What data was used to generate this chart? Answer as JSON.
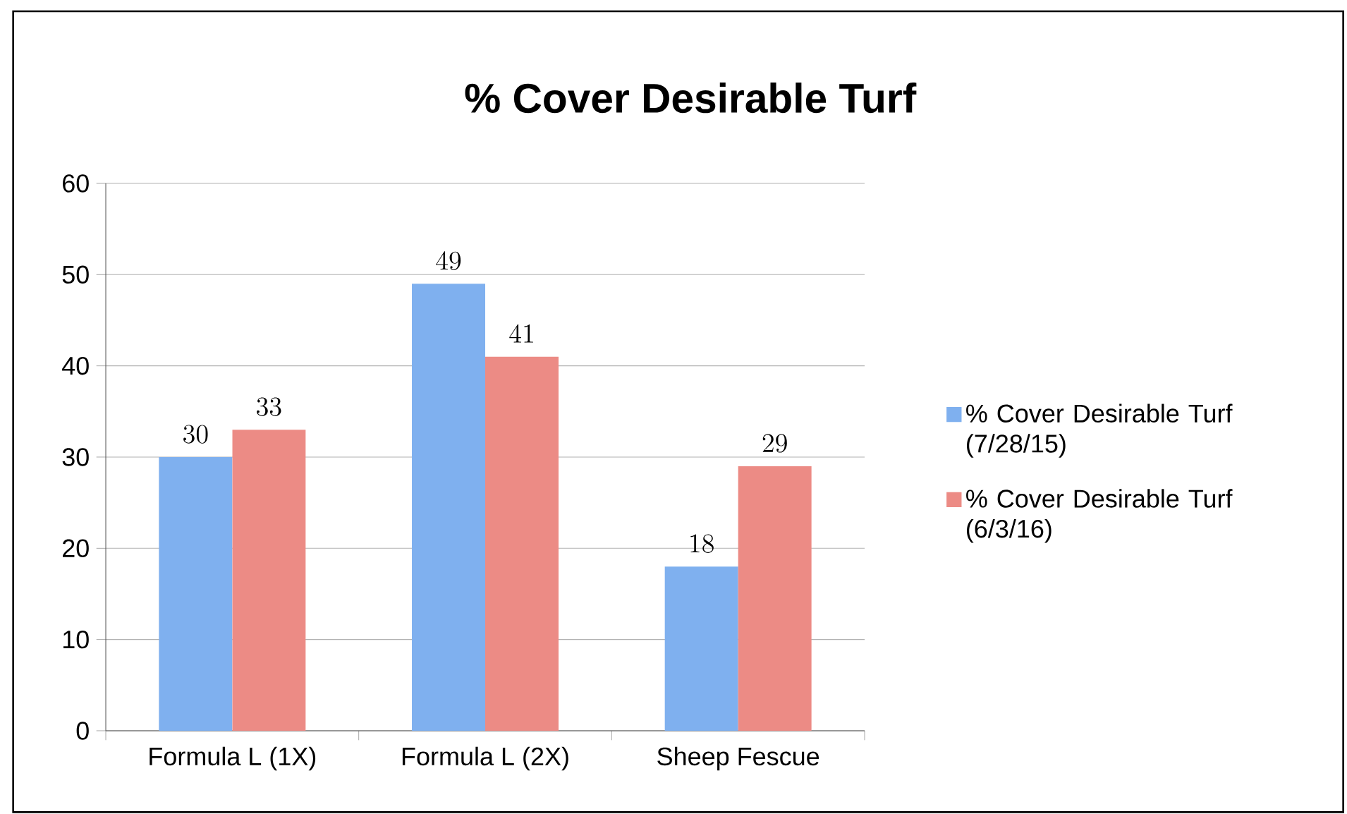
{
  "chart_data": {
    "type": "bar",
    "title": "% Cover Desirable Turf",
    "categories": [
      "Formula L (1X)",
      "Formula L (2X)",
      "Sheep Fescue"
    ],
    "series": [
      {
        "name": "% Cover Desirable Turf (7/28/15)",
        "color": "#7fb0ef",
        "values": [
          30,
          49,
          18
        ]
      },
      {
        "name": "% Cover Desirable Turf (6/3/16)",
        "color": "#ec8b85",
        "values": [
          33,
          41,
          29
        ]
      }
    ],
    "ylim": [
      0,
      60
    ],
    "yticks": [
      0,
      10,
      20,
      30,
      40,
      50,
      60
    ],
    "grid": "y",
    "legend": "right",
    "data_labels": true
  }
}
